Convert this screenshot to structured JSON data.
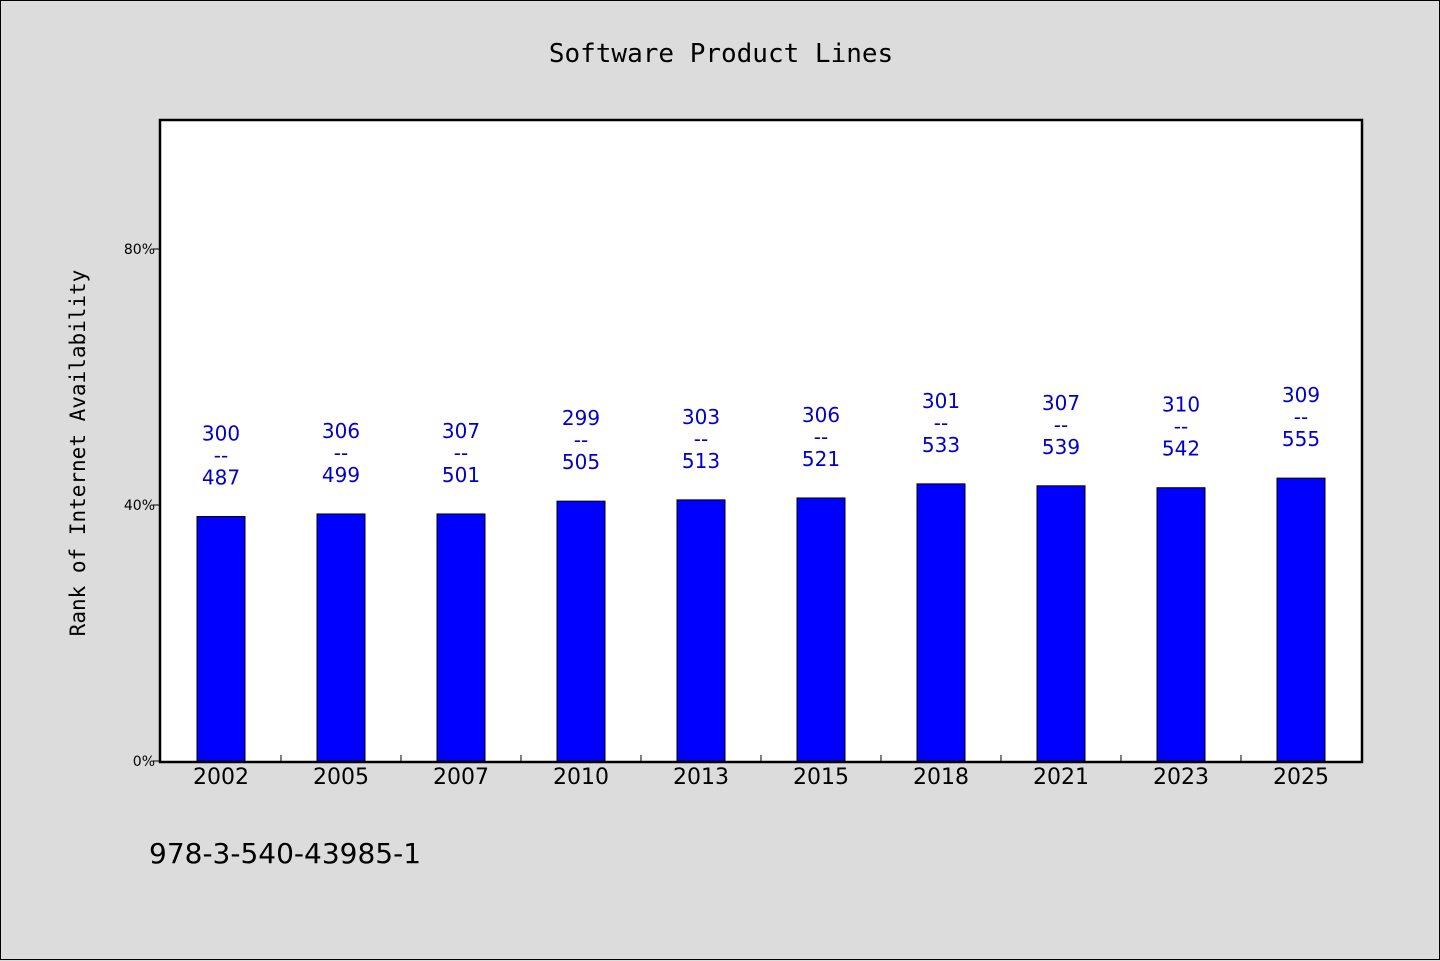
{
  "chart_data": {
    "type": "bar",
    "title": "Software Product Lines",
    "xlabel": "",
    "ylabel": "Rank of Internet Availability",
    "ylim": [
      0,
      100
    ],
    "yticks": [
      0,
      40,
      80
    ],
    "ytick_labels": [
      "0%",
      "40%",
      "80%"
    ],
    "categories": [
      "2002",
      "2005",
      "2007",
      "2010",
      "2013",
      "2015",
      "2018",
      "2021",
      "2023",
      "2025"
    ],
    "values": [
      38.2,
      38.6,
      38.6,
      40.6,
      40.8,
      41.1,
      43.3,
      43.0,
      42.7,
      44.2
    ],
    "bar_labels": [
      {
        "top": "300",
        "sep": "--",
        "bottom": "487"
      },
      {
        "top": "306",
        "sep": "--",
        "bottom": "499"
      },
      {
        "top": "307",
        "sep": "--",
        "bottom": "501"
      },
      {
        "top": "299",
        "sep": "--",
        "bottom": "505"
      },
      {
        "top": "303",
        "sep": "--",
        "bottom": "513"
      },
      {
        "top": "306",
        "sep": "--",
        "bottom": "521"
      },
      {
        "top": "301",
        "sep": "--",
        "bottom": "533"
      },
      {
        "top": "307",
        "sep": "--",
        "bottom": "539"
      },
      {
        "top": "310",
        "sep": "--",
        "bottom": "542"
      },
      {
        "top": "309",
        "sep": "--",
        "bottom": "555"
      }
    ],
    "bar_color": "#0000ff",
    "label_color": "#0000cc",
    "grid": false,
    "legend": "none"
  },
  "footer": {
    "text": "978-3-540-43985-1"
  }
}
